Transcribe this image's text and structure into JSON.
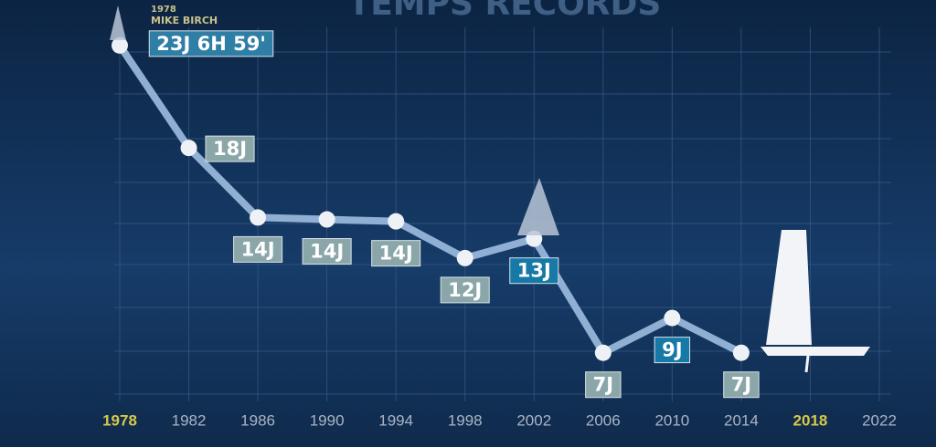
{
  "chart_data": {
    "type": "line",
    "title": "TEMPS RECORDS",
    "annotation": {
      "year": "1978",
      "name": "MIKE BIRCH"
    },
    "x": [
      1978,
      1982,
      1986,
      1990,
      1994,
      1998,
      2002,
      2006,
      2010,
      2014
    ],
    "series": [
      {
        "color": "#9dbde0",
        "values": [
          23.3,
          18.0,
          14.4,
          14.3,
          14.2,
          12.3,
          13.3,
          7.4,
          9.2,
          7.4
        ],
        "value_labels": [
          "23J 6H 59'",
          "18J",
          "14J",
          "14J",
          "14J",
          "12J",
          "13J",
          "7J",
          "9J",
          "7J"
        ],
        "label_colors": [
          "#2e7ea6",
          "#8ba6a8",
          "#8ba6a8",
          "#8ba6a8",
          "#8ba6a8",
          "#8ba6a8",
          "#1679a6",
          "#8ba6a8",
          "#1679a6",
          "#8ba6a8"
        ]
      }
    ],
    "xlim": [
      1978,
      2022
    ],
    "xticks": [
      1978,
      1982,
      1986,
      1990,
      1994,
      1998,
      2002,
      2006,
      2010,
      2014,
      2018,
      2022
    ],
    "highlight_ticks": [
      1978,
      2018
    ],
    "tick_color": "#aab4c4",
    "highlight_color": "#d8c84a",
    "ylim": [
      5.5,
      24
    ],
    "grid": true
  }
}
